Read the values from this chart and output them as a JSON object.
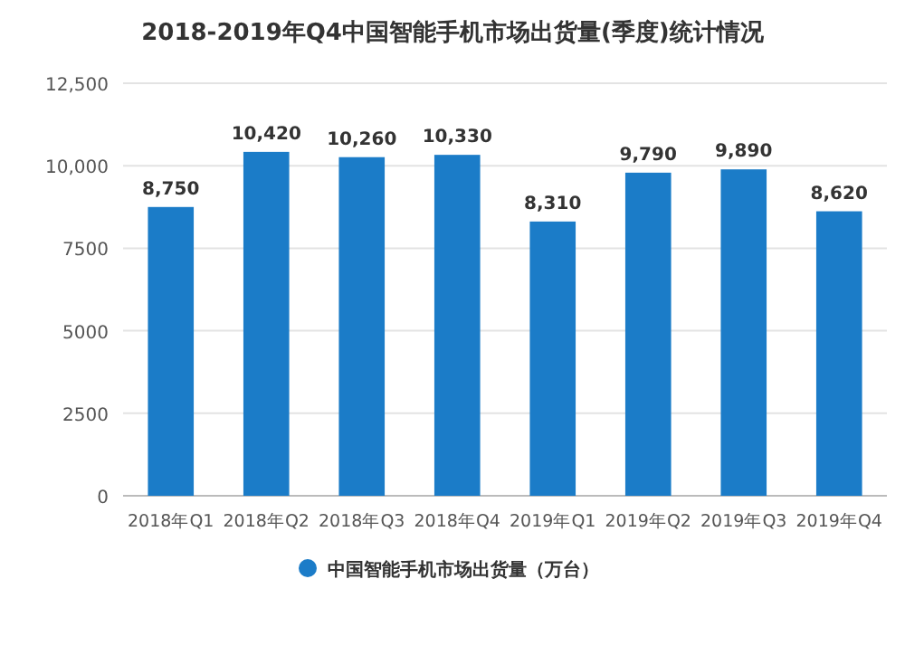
{
  "chart_data": {
    "type": "bar",
    "title": "2018-2019年Q4中国智能手机市场出货量(季度)统计情况",
    "categories": [
      "2018年Q1",
      "2018年Q2",
      "2018年Q3",
      "2018年Q4",
      "2019年Q1",
      "2019年Q2",
      "2019年Q3",
      "2019年Q4"
    ],
    "series": [
      {
        "name": "中国智能手机市场出货量（万台）",
        "color": "#1b7cc8",
        "values": [
          8750,
          10420,
          10260,
          10330,
          8310,
          9790,
          9890,
          8620
        ],
        "value_labels": [
          "8,750",
          "10,420",
          "10,260",
          "10,330",
          "8,310",
          "9,790",
          "9,890",
          "8,620"
        ]
      }
    ],
    "ylim": [
      0,
      12500
    ],
    "yticks": [
      0,
      2500,
      5000,
      7500,
      {
        "value": 10000,
        "label": "10,000"
      },
      {
        "value": 12500,
        "label": "12,500"
      }
    ],
    "grid": "y",
    "legend": "bottom"
  }
}
